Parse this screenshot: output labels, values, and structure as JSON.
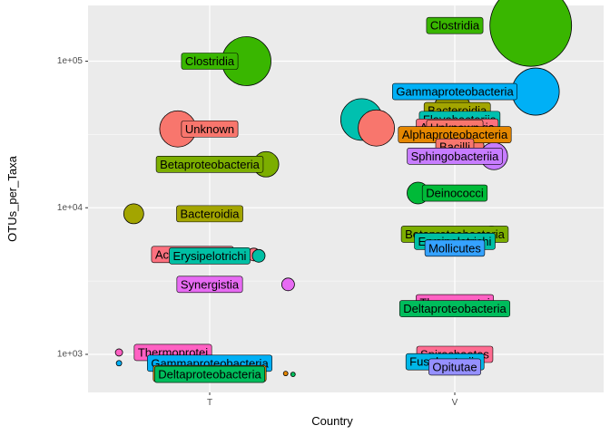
{
  "chart_data": {
    "type": "scatter",
    "title": "",
    "xlabel": "Country",
    "ylabel": "OTUs_per_Taxa",
    "x_categories": [
      "T",
      "V"
    ],
    "y_scale": "log10",
    "y_ticks": [
      {
        "value": 1000,
        "label": "1e+03"
      },
      {
        "value": 10000,
        "label": "1e+04"
      },
      {
        "value": 100000,
        "label": "1e+05"
      }
    ],
    "ylim": [
      550,
      240000
    ],
    "grid": true,
    "legend": "none",
    "colors": {
      "Clostridia": "#39B600",
      "Unknown": "#F8766D",
      "Betaproteobacteria": "#7CAE00",
      "Bacteroidia": "#A3A500",
      "Actinobacteria": "#FC717F",
      "Erysipelotrichi": "#00BFA4",
      "Synergistia": "#E76BF3",
      "Gammaproteobacteria": "#00B0F6",
      "Alphaproteobacteria": "#E58700",
      "Flavobacteriia": "#00C0AF",
      "Bacilli": "#F8766D",
      "Sphingobacteriia": "#C77CFF",
      "Deinococci": "#00BA38",
      "Mollicutes": "#35A2FF",
      "Thermoprotei": "#FF61C3",
      "Deltaproteobacteria": "#00BD5C",
      "Spirochaetes": "#FF6C91",
      "Opitutae": "#9590FF",
      "Fusobacteriia": "#00B7E8"
    },
    "points": [
      {
        "name": "Clostridia",
        "country": "T",
        "jitter": 0.15,
        "label_jitter": 0.0,
        "y": 100000,
        "r": 27
      },
      {
        "name": "Unknown",
        "country": "T",
        "jitter": -0.13,
        "label_jitter": 0.0,
        "y": 34500,
        "r": 20
      },
      {
        "name": "Betaproteobacteria",
        "country": "T",
        "jitter": 0.23,
        "label_jitter": 0.0,
        "y": 19800,
        "r": 14
      },
      {
        "name": "Bacteroidia",
        "country": "T",
        "jitter": -0.31,
        "label_jitter": 0.0,
        "y": 9100,
        "r": 11
      },
      {
        "name": "Actinobacteria",
        "country": "T",
        "jitter": 0.18,
        "label_jitter": -0.07,
        "y": 4800,
        "r": 7
      },
      {
        "name": "Erysipelotrichi",
        "country": "T",
        "jitter": 0.2,
        "label_jitter": 0.0,
        "y": 4700,
        "r": 7
      },
      {
        "name": "Synergistia",
        "country": "T",
        "jitter": 0.32,
        "label_jitter": 0.0,
        "y": 3000,
        "r": 7
      },
      {
        "name": "Thermoprotei",
        "country": "T",
        "jitter": -0.37,
        "label_jitter": -0.15,
        "y": 1030,
        "r": 4
      },
      {
        "name": "Gammaproteobacteria",
        "country": "T",
        "jitter": -0.37,
        "label_jitter": 0.0,
        "y": 870,
        "r": 3
      },
      {
        "name": "Alphaproteobacteria",
        "country": "T",
        "jitter": 0.31,
        "label_jitter": 0.0,
        "y": 740,
        "r": 2.5
      },
      {
        "name": "Deltaproteobacteria",
        "country": "T",
        "jitter": 0.34,
        "label_jitter": 0.0,
        "y": 730,
        "r": 2.5
      },
      {
        "name": "Clostridia",
        "country": "V",
        "jitter": 0.31,
        "label_jitter": 0.0,
        "y": 175000,
        "r": 45
      },
      {
        "name": "Gammaproteobacteria",
        "country": "V",
        "jitter": 0.33,
        "label_jitter": 0.0,
        "y": 62000,
        "r": 26
      },
      {
        "name": "Bacteroidia",
        "country": "V",
        "jitter": -0.01,
        "label_jitter": 0.01,
        "y": 46000,
        "r": 21
      },
      {
        "name": "Flavobacteriia",
        "country": "V",
        "jitter": -0.38,
        "label_jitter": 0.02,
        "y": 40000,
        "r": 23
      },
      {
        "name": "Actinobacteria",
        "country": "V",
        "jitter": -0.04,
        "label_jitter": 0.01,
        "y": 35500,
        "r": 20
      },
      {
        "name": "Unknown",
        "country": "V",
        "jitter": -0.32,
        "label_jitter": 0.0,
        "y": 35000,
        "r": 20
      },
      {
        "name": "Alphaproteobacteria",
        "country": "V",
        "jitter": 0.0,
        "label_jitter": 0.0,
        "y": 31500,
        "r": 18
      },
      {
        "name": "Bacilli",
        "country": "V",
        "jitter": 0.06,
        "label_jitter": 0.0,
        "y": 26000,
        "r": 16
      },
      {
        "name": "Sphingobacteriia",
        "country": "V",
        "jitter": 0.16,
        "label_jitter": 0.0,
        "y": 22500,
        "r": 15
      },
      {
        "name": "Deinococci",
        "country": "V",
        "jitter": -0.15,
        "label_jitter": 0.0,
        "y": 12600,
        "r": 12
      },
      {
        "name": "Betaproteobacteria",
        "country": "V",
        "jitter": 0.15,
        "label_jitter": 0.0,
        "y": 6600,
        "r": 9
      },
      {
        "name": "Erysipelotrichi",
        "country": "V",
        "jitter": -0.06,
        "label_jitter": 0.0,
        "y": 5900,
        "r": 7
      },
      {
        "name": "Mollicutes",
        "country": "V",
        "jitter": -0.02,
        "label_jitter": 0.0,
        "y": 5300,
        "r": 6
      },
      {
        "name": "Thermoprotei",
        "country": "V",
        "jitter": 0.0,
        "label_jitter": 0.0,
        "y": 2250,
        "r": 5
      },
      {
        "name": "Deltaproteobacteria",
        "country": "V",
        "jitter": 0.0,
        "label_jitter": 0.0,
        "y": 2050,
        "r": 5
      },
      {
        "name": "Spirochaetes",
        "country": "V",
        "jitter": 0.0,
        "label_jitter": 0.0,
        "y": 1000,
        "r": 4
      },
      {
        "name": "Fusobacteriia",
        "country": "V",
        "jitter": 0.0,
        "label_jitter": -0.04,
        "y": 890,
        "r": 3
      },
      {
        "name": "Opitutae",
        "country": "V",
        "jitter": 0.0,
        "label_jitter": 0.0,
        "y": 820,
        "r": 3
      }
    ]
  }
}
